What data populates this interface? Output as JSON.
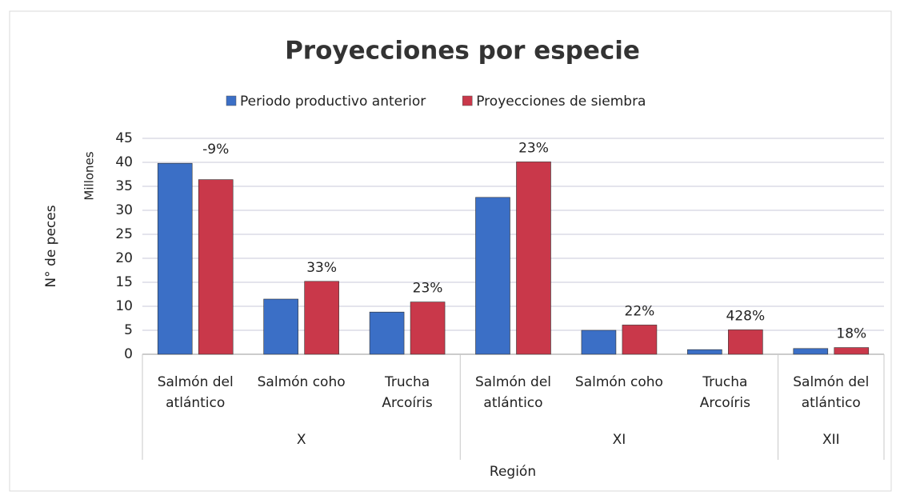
{
  "chart_data": {
    "type": "bar",
    "title": "Proyecciones por especie",
    "y_label": "N° de peces",
    "y_unit_label": "Millones",
    "x_label": "Región",
    "categories": [
      "Salmón del atlántico",
      "Salmón coho",
      "Trucha Arcoíris",
      "Salmón del atlántico",
      "Salmón coho",
      "Trucha Arcoíris",
      "Salmón del atlántico"
    ],
    "regions": [
      "X",
      "X",
      "X",
      "XI",
      "XI",
      "XI",
      "XII"
    ],
    "series": [
      {
        "name": "Periodo productivo anterior",
        "color": "#3b6fc6",
        "values": [
          39.8,
          11.5,
          8.8,
          32.7,
          5.0,
          0.97,
          1.2
        ]
      },
      {
        "name": "Proyecciones de siembra",
        "color": "#c9384a",
        "values": [
          36.4,
          15.2,
          10.9,
          40.1,
          6.1,
          5.1,
          1.4
        ]
      }
    ],
    "change_labels": [
      "-9%",
      "33%",
      "23%",
      "23%",
      "22%",
      "428%",
      "18%"
    ],
    "ylim": [
      0,
      45
    ],
    "yticks": [
      0,
      5,
      10,
      15,
      20,
      25,
      30,
      35,
      40,
      45
    ],
    "grid": true,
    "legend": "top"
  }
}
